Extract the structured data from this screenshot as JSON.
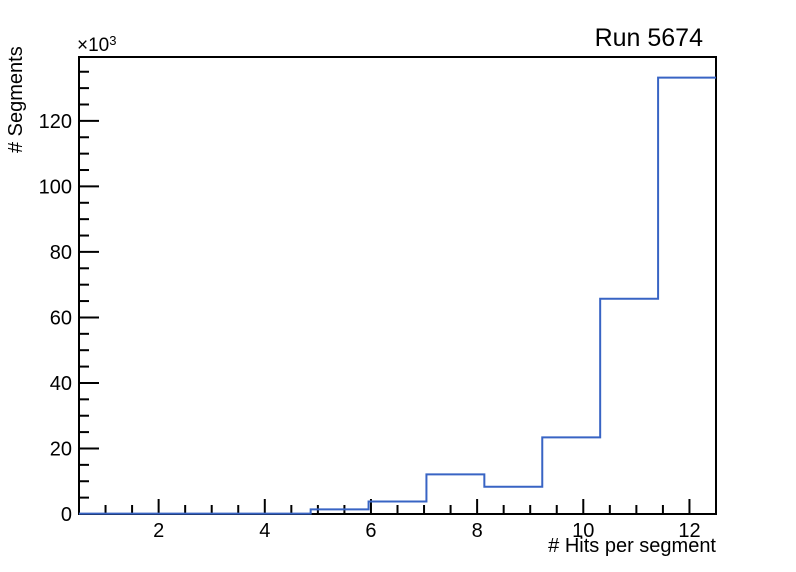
{
  "chart_data": {
    "type": "bar",
    "subtype": "step-histogram",
    "title": "Run 5674",
    "xlabel": "# Hits per segment",
    "ylabel": "# Segments",
    "y_axis_power_label": {
      "base": "×10",
      "exp": "3"
    },
    "x_range": [
      0.5,
      12.5
    ],
    "y_range": [
      0,
      139.5
    ],
    "y_values_unit": "thousands",
    "bin_edges": [
      0.5,
      1.591,
      2.682,
      3.773,
      4.864,
      5.955,
      7.045,
      8.136,
      9.227,
      10.318,
      11.409,
      12.5
    ],
    "counts_thousands": [
      0.1,
      0.1,
      0.1,
      0.1,
      1.4,
      3.8,
      12.1,
      8.3,
      23.4,
      65.7,
      133.2
    ],
    "x_ticks_labeled": [
      2,
      4,
      6,
      8,
      10,
      12
    ],
    "x_minor_step": 0.5,
    "y_ticks_labeled": [
      0,
      20,
      40,
      60,
      80,
      100,
      120
    ],
    "y_minor_step": 5,
    "grid": false,
    "legend": "none",
    "line_color": "#3864c4",
    "frame_color": "#000000"
  }
}
